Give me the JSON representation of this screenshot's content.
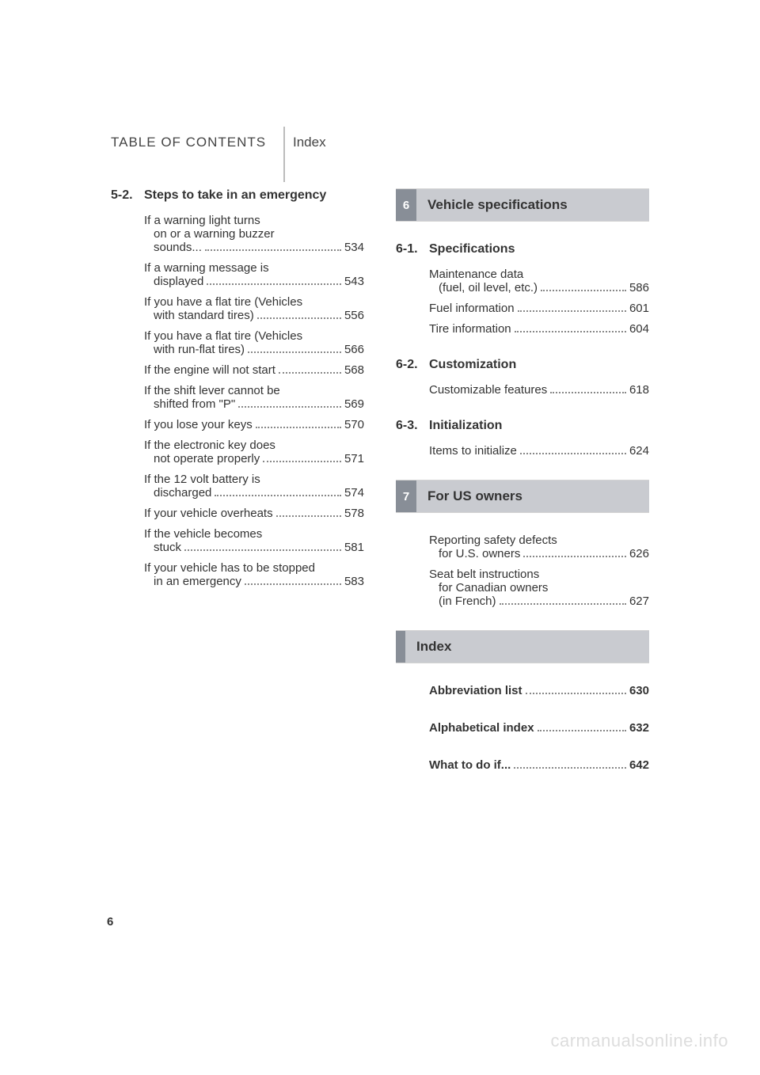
{
  "header": {
    "toc": "TABLE OF CONTENTS",
    "index": "Index"
  },
  "left": {
    "section_num": "5-2.",
    "section_title": "Steps to take in an emergency",
    "entries": [
      {
        "l1": "If a warning light turns",
        "l2": "on or a warning buzzer",
        "l3": "sounds...",
        "p": "534"
      },
      {
        "l1": "If a warning message is",
        "l2": "displayed",
        "p": "543"
      },
      {
        "l1": "If you have a flat tire (Vehicles",
        "l2": "with standard tires)",
        "p": "556"
      },
      {
        "l1": "If you have a flat tire (Vehicles",
        "l2": "with run-flat tires)",
        "p": "566"
      },
      {
        "l1": "If the engine will not start",
        "p": "568"
      },
      {
        "l1": "If the shift lever cannot be",
        "l2": "shifted from \"P\"",
        "p": "569"
      },
      {
        "l1": "If you lose your keys",
        "p": "570"
      },
      {
        "l1": "If the electronic key does",
        "l2": "not operate properly",
        "p": "571"
      },
      {
        "l1": "If the 12 volt battery is",
        "l2": "discharged",
        "p": "574"
      },
      {
        "l1": "If your vehicle overheats",
        "p": "578"
      },
      {
        "l1": "If the vehicle becomes",
        "l2": "stuck",
        "p": "581"
      },
      {
        "l1": "If your vehicle has to be stopped",
        "l2": "in an emergency",
        "p": "583"
      }
    ]
  },
  "right": {
    "chapters": [
      {
        "num": "6",
        "title": "Vehicle specifications",
        "sections": [
          {
            "num": "6-1.",
            "title": "Specifications",
            "entries": [
              {
                "l1": "Maintenance data",
                "l2": "(fuel, oil level, etc.)",
                "p": "586"
              },
              {
                "l1": "Fuel information",
                "p": "601"
              },
              {
                "l1": "Tire information",
                "p": "604"
              }
            ]
          },
          {
            "num": "6-2.",
            "title": "Customization",
            "entries": [
              {
                "l1": "Customizable features",
                "p": "618"
              }
            ]
          },
          {
            "num": "6-3.",
            "title": "Initialization",
            "entries": [
              {
                "l1": "Items to initialize",
                "p": "624"
              }
            ]
          }
        ]
      },
      {
        "num": "7",
        "title": "For US owners",
        "sections": [
          {
            "entries": [
              {
                "l1": "Reporting safety defects",
                "l2": "for U.S. owners",
                "p": "626"
              },
              {
                "l1": "Seat belt instructions",
                "l2": "for Canadian owners",
                "l3": "(in French)",
                "p": "627"
              }
            ]
          }
        ]
      },
      {
        "title": "Index",
        "sections": [
          {
            "entries": [
              {
                "l1": "Abbreviation list",
                "p": "630",
                "bold": true,
                "gap": true
              },
              {
                "l1": "Alphabetical index",
                "p": "632",
                "bold": true,
                "gap": true
              },
              {
                "l1": "What to do if...",
                "p": "642",
                "bold": true,
                "gap": true
              }
            ]
          }
        ]
      }
    ]
  },
  "pageNumber": "6",
  "watermark": "carmanualsonline.info",
  "colors": {
    "band_dark": "#888e97",
    "band_light": "#c9cbd0",
    "divider": "#bcbcbc"
  }
}
